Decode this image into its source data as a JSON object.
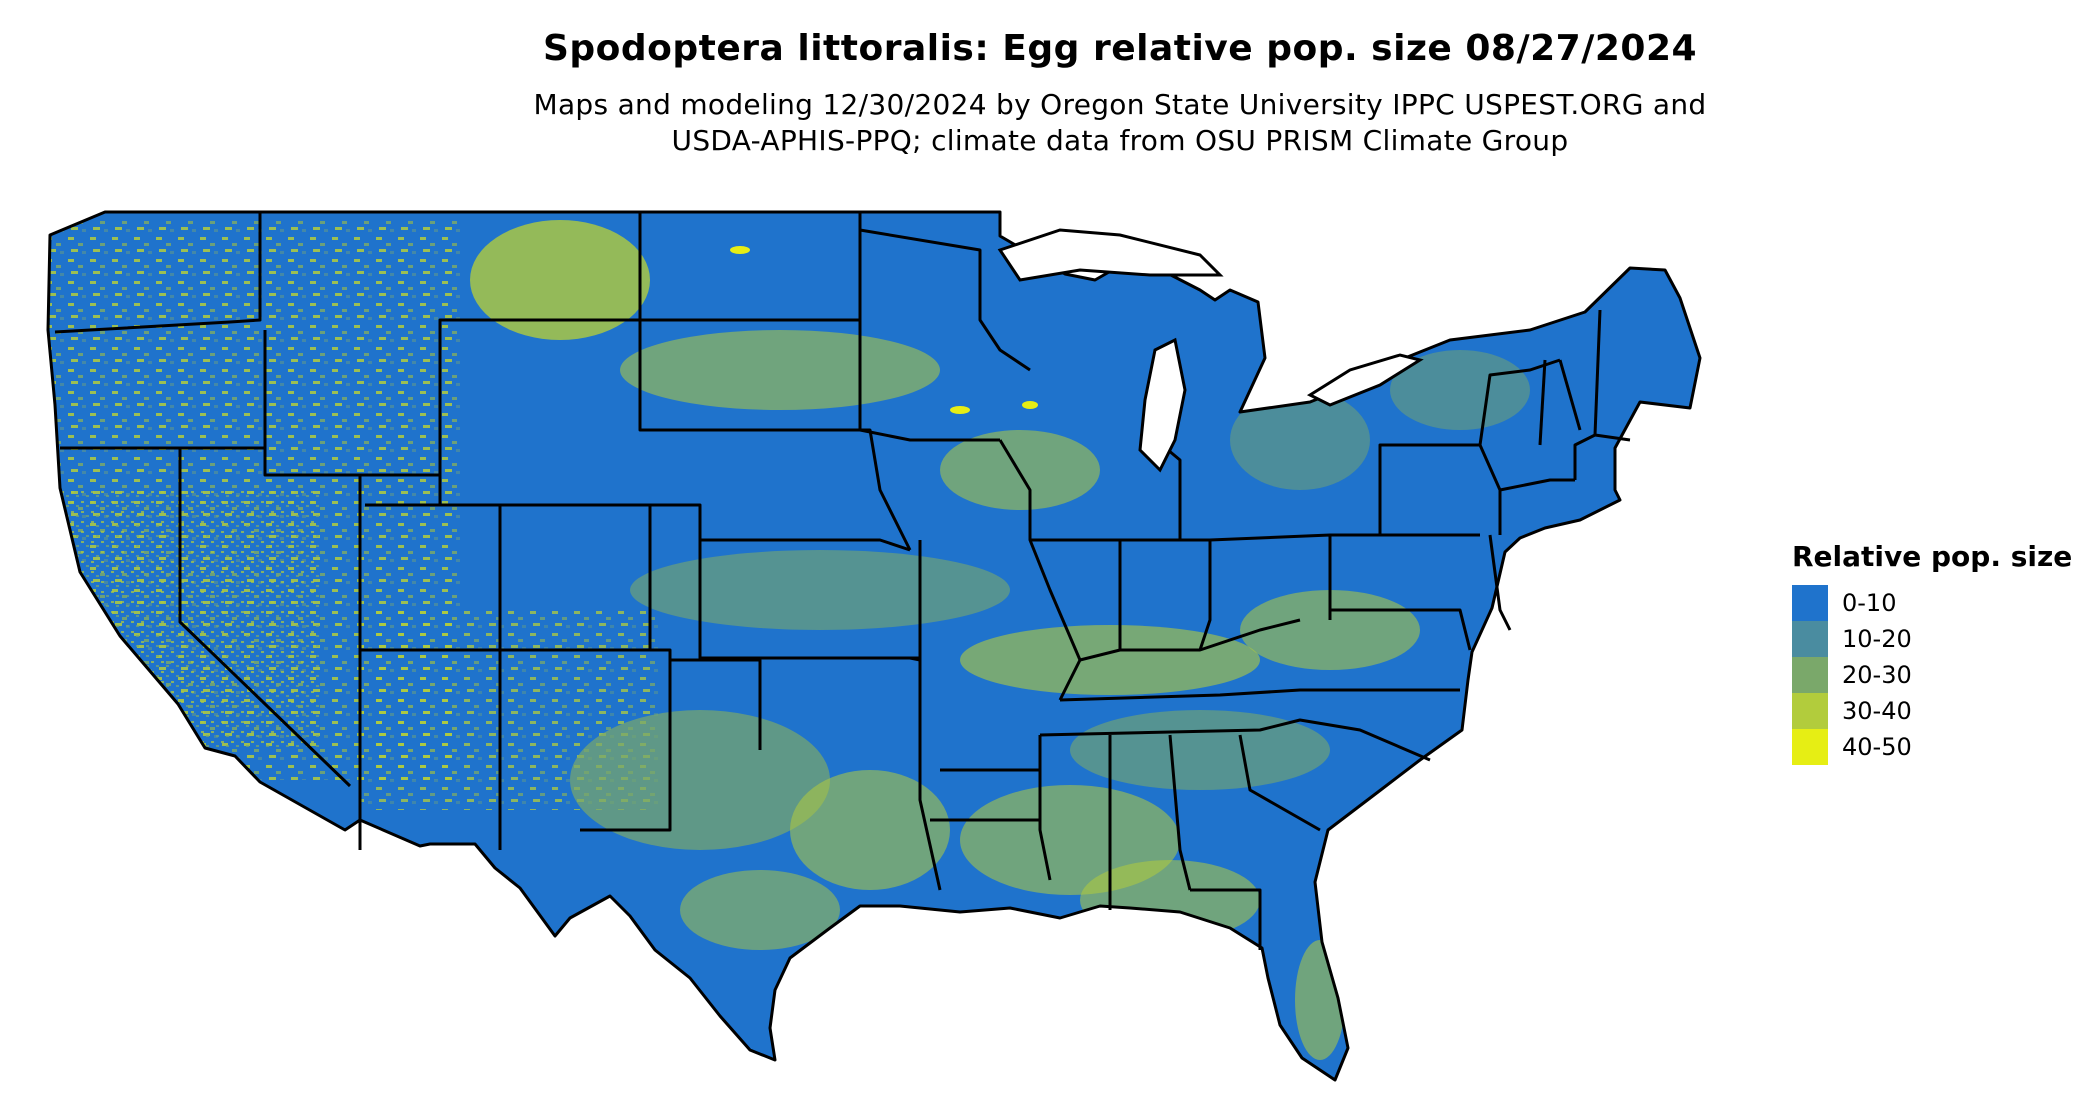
{
  "title": "Spodoptera littoralis: Egg relative pop. size 08/27/2024",
  "subtitle_line1": "Maps and modeling 12/30/2024 by Oregon State University IPPC USPEST.ORG and",
  "subtitle_line2": "USDA-APHIS-PPQ; climate data from OSU PRISM Climate Group",
  "legend": {
    "title": "Relative pop. size",
    "items": [
      {
        "label": "0-10",
        "color": "#1f73cc"
      },
      {
        "label": "10-20",
        "color": "#4a8ca0"
      },
      {
        "label": "20-30",
        "color": "#7aa86a"
      },
      {
        "label": "30-40",
        "color": "#b2cc3c"
      },
      {
        "label": "40-50",
        "color": "#e6ee14"
      }
    ]
  },
  "map": {
    "region": "Conterminous United States",
    "background_class": "0-10",
    "border_color": "#000000"
  }
}
